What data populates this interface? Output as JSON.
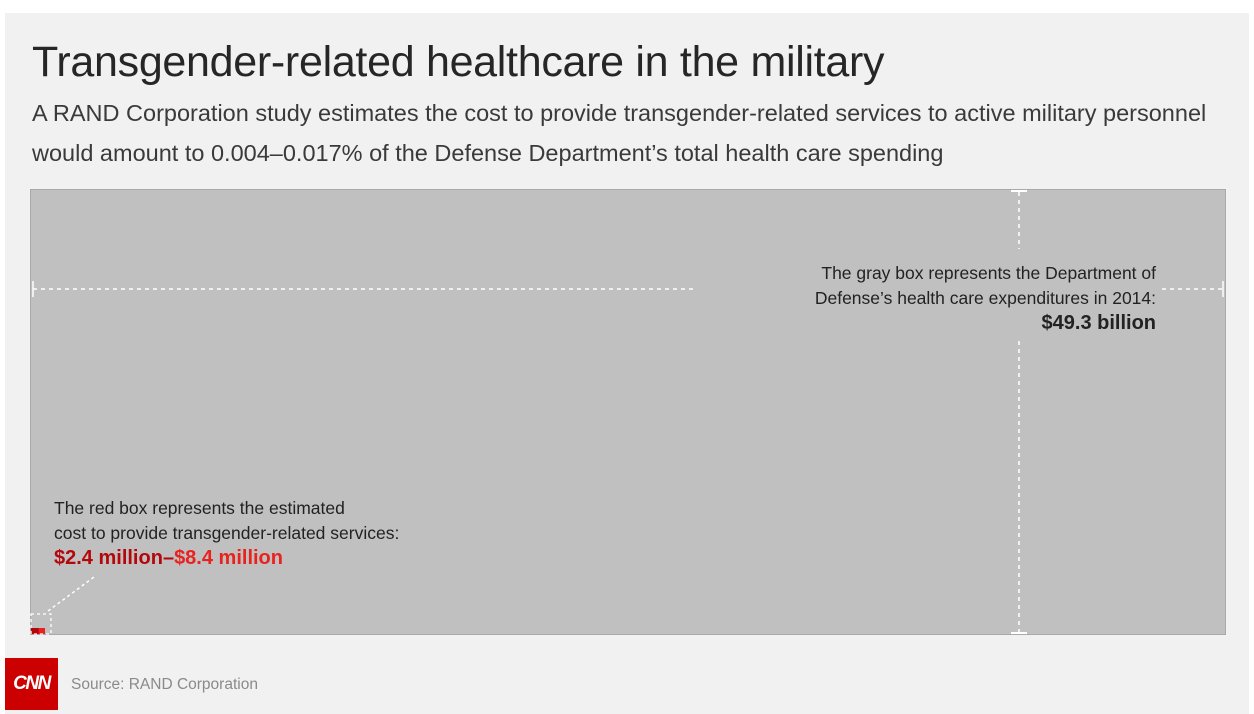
{
  "title": "Transgender-related healthcare in the military",
  "subtitle": "A RAND Corporation study estimates the cost to provide transgender-related services to active military personnel would amount to 0.004–0.017% of the Defense Department’s total health care spending",
  "chart_data": {
    "type": "area",
    "title": "Transgender-related healthcare in the military",
    "unit": "US dollars",
    "items": [
      {
        "name": "Department of Defense health care expenditures in 2014",
        "value": 49300000000,
        "color": "#c0c0c0"
      },
      {
        "name": "Estimated cost of transgender-related services (low)",
        "value": 2400000,
        "color": "#b3070b"
      },
      {
        "name": "Estimated cost of transgender-related services (high)",
        "value": 8400000,
        "color": "#e8231f"
      }
    ],
    "annotations": {
      "gray_text": [
        "The gray box represents the Department of",
        "Defense’s health care expenditures in 2014:"
      ],
      "gray_value": "$49.3 billion",
      "red_text": [
        "The red box represents the estimated",
        "cost to provide transgender-related services:"
      ],
      "red_low": "$2.4 million",
      "red_sep": "–",
      "red_high": "$8.4 million"
    }
  },
  "footer": {
    "logo": "CNN",
    "source": "Source: RAND Corporation"
  },
  "colors": {
    "background": "#f1f1f1",
    "gray_box": "#c0c0c0",
    "red_dark": "#b3070b",
    "red_light": "#e8231f",
    "logo_bg": "#cc0000"
  }
}
